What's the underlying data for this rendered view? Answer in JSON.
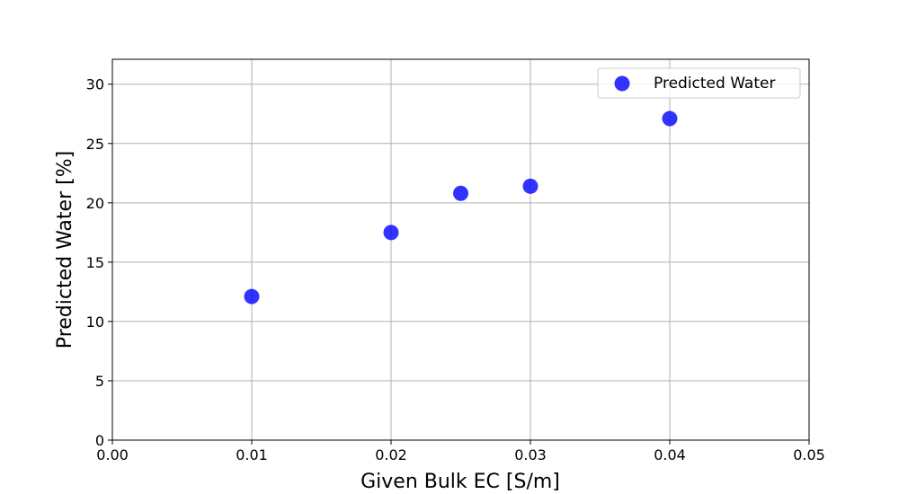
{
  "chart_data": {
    "type": "scatter",
    "title": "",
    "xlabel": "Given Bulk EC [S/m]",
    "ylabel": "Predicted Water [%]",
    "xlim": [
      0.0,
      0.05
    ],
    "ylim": [
      0,
      32.1
    ],
    "xticks": [
      "0.00",
      "0.01",
      "0.02",
      "0.03",
      "0.04",
      "0.05"
    ],
    "yticks": [
      "0",
      "5",
      "10",
      "15",
      "20",
      "25",
      "30"
    ],
    "grid": true,
    "legend_position": "top-right",
    "series": [
      {
        "name": "Predicted Water",
        "color": "#0000ff",
        "x": [
          0.01,
          0.02,
          0.025,
          0.03,
          0.04
        ],
        "y": [
          12.1,
          17.5,
          20.8,
          21.4,
          27.1
        ]
      }
    ]
  }
}
